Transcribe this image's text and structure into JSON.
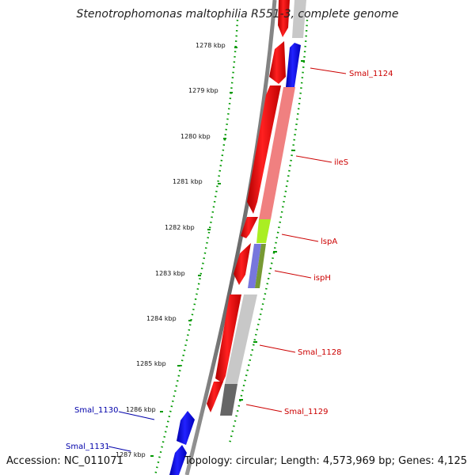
{
  "header": {
    "title": "Stenotrophomonas maltophilia R551-3, complete genome"
  },
  "footer": {
    "accession": "Accession: NC_011071",
    "topology": "Topology: circular; Length: 4,573,969 bp; Genes: 4,125"
  },
  "ticks": [
    {
      "label": "1278 kbp"
    },
    {
      "label": "1279 kbp"
    },
    {
      "label": "1280 kbp"
    },
    {
      "label": "1281 kbp"
    },
    {
      "label": "1282 kbp"
    },
    {
      "label": "1283 kbp"
    },
    {
      "label": "1284 kbp"
    },
    {
      "label": "1285 kbp"
    },
    {
      "label": "1286 kbp"
    },
    {
      "label": "1287 kbp"
    }
  ],
  "gene_labels": [
    {
      "name": "Smal_1124",
      "color": "#cc0000"
    },
    {
      "name": "ileS",
      "color": "#cc0000"
    },
    {
      "name": "lspA",
      "color": "#cc0000"
    },
    {
      "name": "ispH",
      "color": "#cc0000"
    },
    {
      "name": "Smal_1128",
      "color": "#cc0000"
    },
    {
      "name": "Smal_1129",
      "color": "#cc0000"
    },
    {
      "name": "Smal_1130",
      "color": "#0000aa"
    },
    {
      "name": "Smal_1131",
      "color": "#0000aa"
    }
  ],
  "colors": {
    "backbone": "#777777",
    "tick_green": "#009900",
    "cds": "#ee0000",
    "cds_light": "#f08080",
    "rev_strand": "#0000ee",
    "lspA": "#aaee22",
    "ispH_a": "#7777dd",
    "ispH_b": "#779933",
    "grey_light": "#c8c8c8",
    "grey_dark": "#666666"
  }
}
